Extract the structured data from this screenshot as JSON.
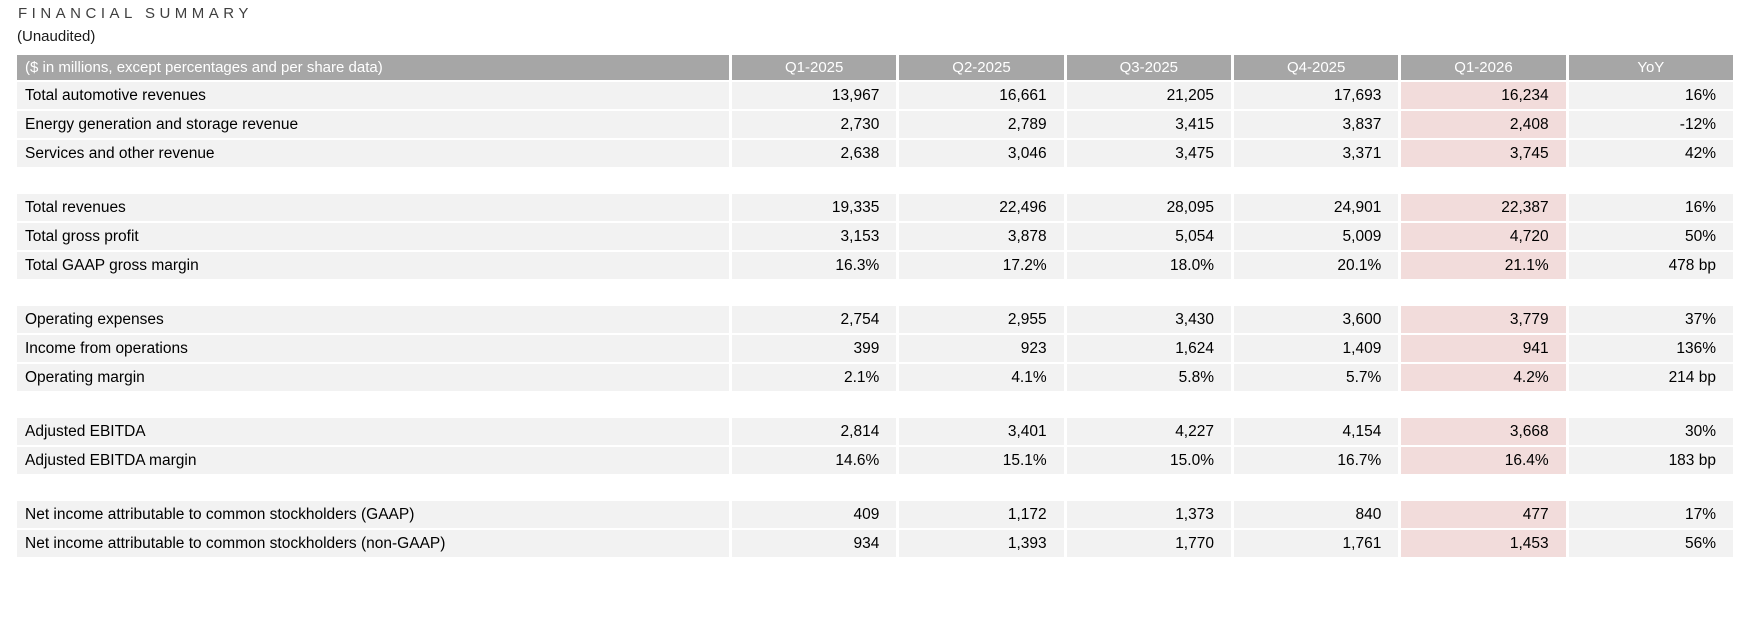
{
  "title": "FINANCIAL SUMMARY",
  "subtitle": "(Unaudited)",
  "colors": {
    "header_bg": "#a6a6a6",
    "header_text": "#ffffff",
    "row_bg": "#f2f2f2",
    "highlight_bg": "#f2dcdb",
    "title_text": "#3f3f3f"
  },
  "table": {
    "header_label": "($ in millions, except percentages and per share data)",
    "columns": [
      "Q1-2025",
      "Q2-2025",
      "Q3-2025",
      "Q4-2025",
      "Q1-2026",
      "YoY"
    ],
    "highlighted_column": "Q1-2026",
    "highlighted_column_index": 4,
    "sections": [
      {
        "rows": [
          {
            "label": "Total automotive revenues",
            "values": [
              "13,967",
              "16,661",
              "21,205",
              "17,693",
              "16,234",
              "16%"
            ]
          },
          {
            "label": "Energy generation and storage revenue",
            "values": [
              "2,730",
              "2,789",
              "3,415",
              "3,837",
              "2,408",
              "-12%"
            ]
          },
          {
            "label": "Services and other revenue",
            "values": [
              "2,638",
              "3,046",
              "3,475",
              "3,371",
              "3,745",
              "42%"
            ]
          }
        ]
      },
      {
        "rows": [
          {
            "label": "Total revenues",
            "values": [
              "19,335",
              "22,496",
              "28,095",
              "24,901",
              "22,387",
              "16%"
            ]
          },
          {
            "label": "Total gross profit",
            "values": [
              "3,153",
              "3,878",
              "5,054",
              "5,009",
              "4,720",
              "50%"
            ]
          },
          {
            "label": "Total GAAP gross margin",
            "values": [
              "16.3%",
              "17.2%",
              "18.0%",
              "20.1%",
              "21.1%",
              "478 bp"
            ]
          }
        ]
      },
      {
        "rows": [
          {
            "label": "Operating expenses",
            "values": [
              "2,754",
              "2,955",
              "3,430",
              "3,600",
              "3,779",
              "37%"
            ]
          },
          {
            "label": "Income from operations",
            "values": [
              "399",
              "923",
              "1,624",
              "1,409",
              "941",
              "136%"
            ]
          },
          {
            "label": "Operating margin",
            "values": [
              "2.1%",
              "4.1%",
              "5.8%",
              "5.7%",
              "4.2%",
              "214 bp"
            ]
          }
        ]
      },
      {
        "rows": [
          {
            "label": "Adjusted EBITDA",
            "values": [
              "2,814",
              "3,401",
              "4,227",
              "4,154",
              "3,668",
              "30%"
            ]
          },
          {
            "label": "Adjusted EBITDA margin",
            "values": [
              "14.6%",
              "15.1%",
              "15.0%",
              "16.7%",
              "16.4%",
              "183 bp"
            ]
          }
        ]
      },
      {
        "rows": [
          {
            "label": "Net income attributable to common stockholders (GAAP)",
            "values": [
              "409",
              "1,172",
              "1,373",
              "840",
              "477",
              "17%"
            ]
          },
          {
            "label": "Net income attributable to common stockholders (non-GAAP)",
            "values": [
              "934",
              "1,393",
              "1,770",
              "1,761",
              "1,453",
              "56%"
            ]
          }
        ]
      }
    ]
  }
}
